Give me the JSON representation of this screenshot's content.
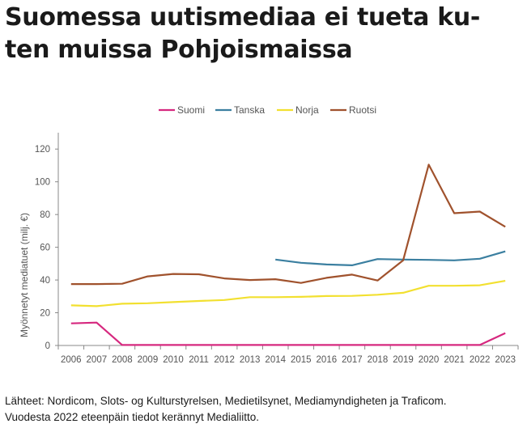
{
  "page": {
    "title_line1": "Suomessa uutismediaa ei tueta ku-",
    "title_line2": "ten muissa Pohjoismaissa",
    "source_line1": "Lähteet: Nordicom,  Slots- og Kulturstyrelsen, Medietilsynet, Mediamyndigheten ja Traficom.",
    "source_line2": "Vuodesta 2022 eteenpäin tiedot kerännyt Medialiitto."
  },
  "chart_data": {
    "type": "line",
    "ylabel": "Myönnetyt mediatuet (milj. €)",
    "xlabel": "",
    "ylim": [
      0,
      130
    ],
    "yticks": [
      0,
      20,
      40,
      60,
      80,
      100,
      120
    ],
    "legend_position": "top",
    "x": [
      "2006",
      "2007",
      "2008",
      "2009",
      "2010",
      "2011",
      "2012",
      "2013",
      "2014",
      "2015",
      "2016",
      "2017",
      "2018",
      "2019",
      "2020",
      "2021",
      "2022",
      "2023"
    ],
    "series": [
      {
        "name": "Suomi",
        "color": "#d6287f",
        "values": [
          13.5,
          14,
          0.3,
          0.3,
          0.3,
          0.3,
          0.3,
          0.3,
          0.3,
          0.3,
          0.3,
          0.3,
          0.3,
          0.3,
          0.3,
          0.3,
          0.3,
          7.5
        ]
      },
      {
        "name": "Tanska",
        "color": "#3b7fa0",
        "values": [
          null,
          null,
          null,
          null,
          null,
          null,
          null,
          null,
          52.5,
          50.5,
          49.5,
          49,
          52.8,
          52.5,
          52.3,
          52,
          53,
          57.5
        ]
      },
      {
        "name": "Norja",
        "color": "#f2e030",
        "values": [
          24.5,
          24,
          25.5,
          25.8,
          26.5,
          27.2,
          27.8,
          29.5,
          29.5,
          29.7,
          30.2,
          30.3,
          31,
          32.2,
          36.5,
          36.5,
          36.8,
          39.5
        ]
      },
      {
        "name": "Ruotsi",
        "color": "#a0522d",
        "values": [
          37.5,
          37.5,
          37.7,
          42.2,
          43.7,
          43.5,
          41,
          40,
          40.5,
          38.2,
          41.3,
          43.3,
          39.7,
          52,
          110.5,
          80.8,
          81.8,
          72.5
        ]
      }
    ]
  }
}
